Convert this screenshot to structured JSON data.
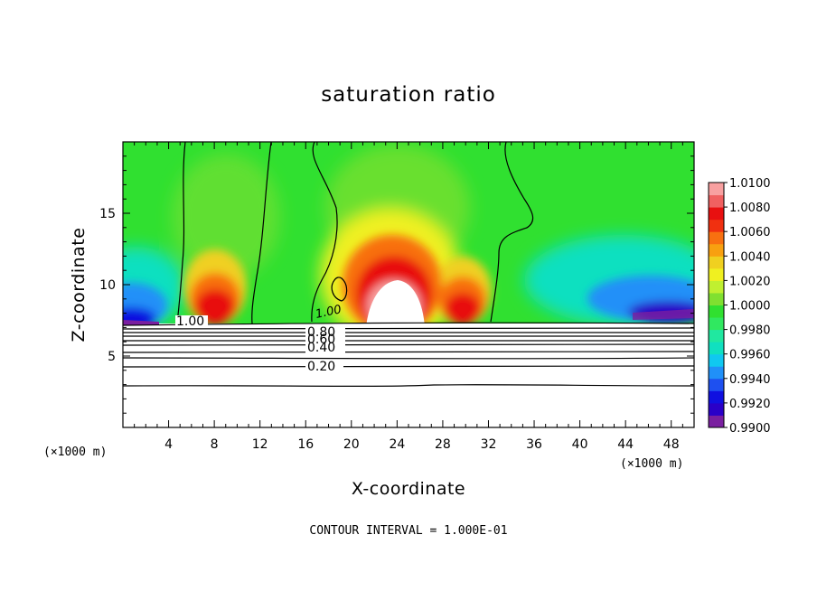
{
  "chart_data": {
    "type": "heatmap",
    "title": "saturation ratio",
    "xlabel": "X-coordinate",
    "ylabel": "Z-coordinate",
    "x_unit": "(×1000 m)",
    "y_unit": "(×1000 m)",
    "xlim": [
      0,
      50
    ],
    "ylim": [
      0,
      20
    ],
    "x_ticks": [
      4,
      8,
      12,
      16,
      20,
      24,
      28,
      32,
      36,
      40,
      44,
      48
    ],
    "x_tick_labels": [
      "4",
      "8",
      "12",
      "16",
      "20",
      "24",
      "28",
      "32",
      "36",
      "40",
      "44",
      "48"
    ],
    "y_ticks": [
      5,
      10,
      15
    ],
    "y_tick_labels": [
      "5",
      "10",
      "15"
    ],
    "colorbar": {
      "levels": [
        0.99,
        0.991,
        0.992,
        0.993,
        0.994,
        0.995,
        0.996,
        0.997,
        0.998,
        0.999,
        1.0,
        1.001,
        1.002,
        1.003,
        1.004,
        1.005,
        1.006,
        1.007,
        1.008,
        1.009,
        1.01
      ],
      "labels": [
        "1.0100",
        "1.0080",
        "1.0060",
        "1.0040",
        "1.0020",
        "1.0000",
        "0.9980",
        "0.9960",
        "0.9940",
        "0.9920",
        "0.9900"
      ],
      "colors": [
        "#7a1fa0",
        "#2a00c8",
        "#1010e0",
        "#1e50f0",
        "#2090f8",
        "#10c8f0",
        "#10e0c0",
        "#20e8a0",
        "#30e860",
        "#30e030",
        "#80e030",
        "#c0f030",
        "#f0f020",
        "#f0d020",
        "#f8a010",
        "#f87010",
        "#f03010",
        "#e81010",
        "#f06060",
        "#f8a0a0"
      ]
    },
    "contour_labels": [
      "1.00",
      "1.00",
      "0.80",
      "0.60",
      "0.40",
      "0.20"
    ],
    "contour_interval_text": "CONTOUR INTERVAL = 1.000E-01",
    "field_features": {
      "unsaturated_base_top_km": 7.3,
      "supersaturated_plumes": [
        {
          "x_center_km": 8.5,
          "z_top_km": 10.0,
          "peak": 1.007
        },
        {
          "x_center_km": 24.5,
          "z_top_km": 12.0,
          "peak": 1.01
        },
        {
          "x_center_km": 29.5,
          "z_top_km": 10.0,
          "peak": 1.008
        }
      ],
      "subsaturated_zones": [
        {
          "x_range_km": [
            0,
            4
          ],
          "z_range_km": [
            7.3,
            12.0
          ],
          "min": 0.991
        },
        {
          "x_range_km": [
            33,
            50
          ],
          "z_range_km": [
            7.3,
            12.0
          ],
          "min": 0.992
        }
      ],
      "background": 1.0
    }
  }
}
